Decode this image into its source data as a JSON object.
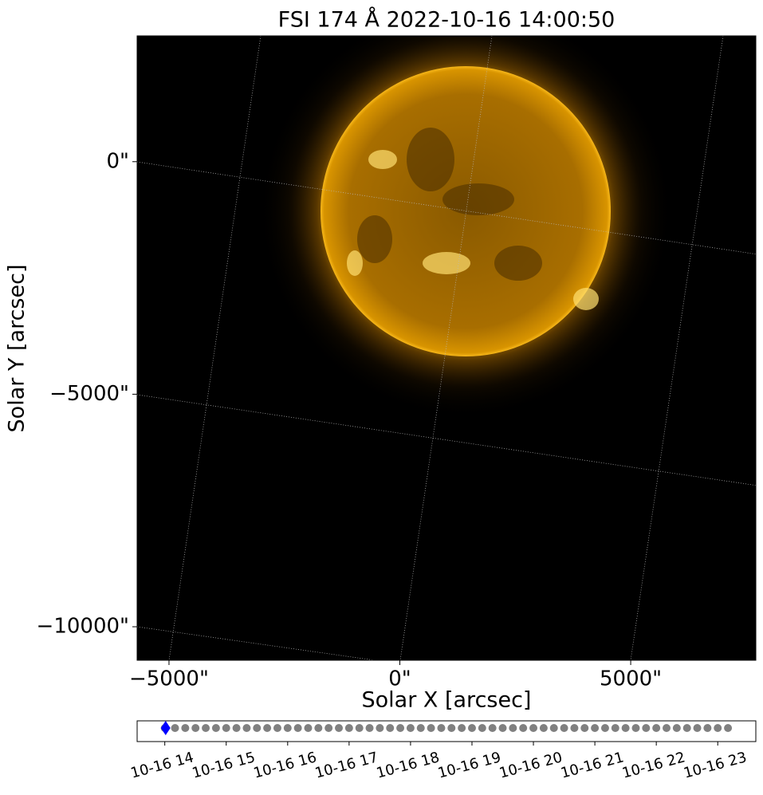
{
  "chart_data": [
    {
      "type": "image",
      "title": "FSI 174 Å 2022-10-16 14:00:50",
      "x_label": "Solar X [arcsec]",
      "y_label": "Solar Y [arcsec]",
      "xlim": [
        -5690,
        7710
      ],
      "ylim": [
        -10720,
        2705
      ],
      "xticks": [
        {
          "value": -5000,
          "label": "−5000\""
        },
        {
          "value": 0,
          "label": "0\""
        },
        {
          "value": 5000,
          "label": "5000\""
        }
      ],
      "yticks": [
        {
          "value": 0,
          "label": "0\""
        },
        {
          "value": -5000,
          "label": "−5000\""
        },
        {
          "value": -10000,
          "label": "−10000\""
        }
      ]
    },
    {
      "type": "timeline",
      "xlim": [
        13.55,
        23.62
      ],
      "xticks": [
        {
          "value": 14,
          "label": "10-16 14"
        },
        {
          "value": 15,
          "label": "10-16 15"
        },
        {
          "value": 16,
          "label": "10-16 16"
        },
        {
          "value": 17,
          "label": "10-16 17"
        },
        {
          "value": 18,
          "label": "10-16 18"
        },
        {
          "value": 19,
          "label": "10-16 19"
        },
        {
          "value": 20,
          "label": "10-16 20"
        },
        {
          "value": 21,
          "label": "10-16 21"
        },
        {
          "value": 22,
          "label": "10-16 22"
        },
        {
          "value": 23,
          "label": "10-16 23"
        }
      ],
      "x": [
        14,
        14.1667,
        14.3333,
        14.5,
        14.6667,
        14.8333,
        15,
        15.1667,
        15.3333,
        15.5,
        15.6667,
        15.8333,
        16,
        16.1667,
        16.3333,
        16.5,
        16.6667,
        16.8333,
        17,
        17.1667,
        17.3333,
        17.5,
        17.6667,
        17.8333,
        18,
        18.1667,
        18.3333,
        18.5,
        18.6667,
        18.8333,
        19,
        19.1667,
        19.3333,
        19.5,
        19.6667,
        19.8333,
        20,
        20.1667,
        20.3333,
        20.5,
        20.6667,
        20.8333,
        21,
        21.1667,
        21.3333,
        21.5,
        21.6667,
        21.8333,
        22,
        22.1667,
        22.3333,
        22.5,
        22.6667,
        22.8333,
        23,
        23.1667
      ],
      "color": "#808080",
      "current": 14.0139,
      "current_color": "#0000ff"
    }
  ]
}
